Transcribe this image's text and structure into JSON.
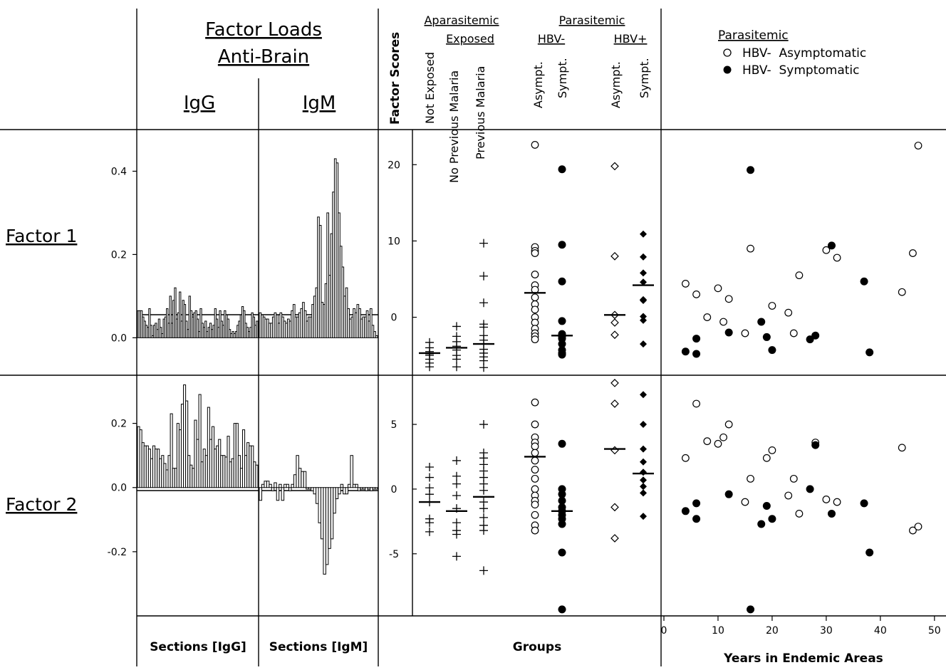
{
  "header": {
    "factor_loads": "Factor Loads",
    "anti_brain": "Anti-Brain",
    "igg": "IgG",
    "igm": "IgM",
    "factor_scores": "Factor Scores",
    "aparasitemic": "Aparasitemic",
    "exposed": "Exposed",
    "parasitemic": "Parasitemic",
    "hbv_neg": "HBV-",
    "hbv_pos": "HBV+",
    "groups": [
      "Not Exposed",
      "No Previous Malaria",
      "Previous Malaria",
      "Asympt.",
      "Sympt.",
      "Asympt.",
      "Sympt."
    ]
  },
  "rows": {
    "factor1": "Factor 1",
    "factor2": "Factor 2"
  },
  "footer": {
    "sections_igg": "Sections [IgG]",
    "sections_igm": "Sections [IgM]",
    "groups": "Groups",
    "years": "Years in Endemic Areas"
  },
  "legend": {
    "title": "Parasitemic",
    "asymptomatic": "HBV-  Asymptomatic",
    "symptomatic": "HBV-  Symptomatic"
  },
  "chart_data": [
    {
      "type": "bar",
      "name": "loads-factor1",
      "ylim": [
        -0.09,
        0.5
      ],
      "yticks": [
        0.0,
        0.2,
        0.4
      ],
      "ytick_labels": [
        "0.0",
        "0.2",
        "0.4"
      ],
      "series": [
        {
          "name": "IgG",
          "values": [
            0.065,
            0.065,
            0.065,
            0.05,
            0.04,
            0.03,
            0.025,
            0.07,
            0.03,
            0.005,
            0.03,
            0.035,
            0.02,
            0.045,
            0.025,
            0.01,
            0.045,
            0.05,
            0.07,
            0.035,
            0.1,
            0.035,
            0.09,
            0.12,
            0.045,
            0.06,
            0.11,
            0.04,
            0.09,
            0.08,
            0.04,
            0.02,
            0.1,
            0.065,
            0.05,
            0.06,
            0.065,
            0.045,
            0.015,
            0.07,
            0.035,
            0.025,
            0.04,
            0.015,
            0.025,
            0.035,
            0.02,
            0.03,
            0.07,
            0.045,
            0.025,
            0.065,
            0.04,
            0.03,
            0.065,
            0.055,
            0.045,
            0.02,
            0.01,
            0.015,
            0.01,
            0.015,
            0.03,
            0.04,
            0.055,
            0.075,
            0.065,
            0.035,
            0.025,
            0.015,
            0.025,
            0.06,
            0.05,
            0.03,
            0.04
          ]
        },
        {
          "name": "IgM",
          "values": [
            0.06,
            0.055,
            0.05,
            0.045,
            0.045,
            0.035,
            0.035,
            0.05,
            0.06,
            0.055,
            0.035,
            0.06,
            0.05,
            0.04,
            0.035,
            0.045,
            0.04,
            0.065,
            0.08,
            0.05,
            0.05,
            0.06,
            0.07,
            0.085,
            0.065,
            0.04,
            0.05,
            0.05,
            0.08,
            0.1,
            0.12,
            0.29,
            0.27,
            0.085,
            0.08,
            0.13,
            0.3,
            0.15,
            0.25,
            0.35,
            0.43,
            0.42,
            0.3,
            0.22,
            0.17,
            0.1,
            0.12,
            0.07,
            0.045,
            0.05,
            0.07,
            0.06,
            0.08,
            0.07,
            0.045,
            0.05,
            0.05,
            0.065,
            0.04,
            0.07,
            0.03,
            0.015,
            0.005
          ]
        }
      ]
    },
    {
      "type": "bar",
      "name": "loads-factor2",
      "ylim": [
        -0.4,
        0.35
      ],
      "yticks": [
        -0.2,
        0.0,
        0.2
      ],
      "ytick_labels": [
        "-0.2",
        "0.0",
        "0.2"
      ],
      "series": [
        {
          "name": "IgG",
          "values": [
            0.19,
            0.18,
            0.14,
            0.13,
            0.13,
            0.12,
            0.09,
            0.13,
            0.12,
            0.12,
            0.09,
            0.1,
            0.075,
            0.055,
            0.1,
            0.23,
            0.06,
            0.06,
            0.2,
            0.18,
            0.26,
            0.32,
            0.27,
            0.1,
            0.07,
            0.06,
            0.21,
            0.15,
            0.29,
            0.08,
            0.12,
            0.1,
            0.25,
            0.15,
            0.19,
            0.12,
            0.13,
            0.15,
            0.1,
            0.1,
            0.095,
            0.16,
            0.08,
            0.09,
            0.2,
            0.2,
            0.1,
            0.06,
            0.18,
            0.1,
            0.14,
            0.13,
            0.13,
            0.08,
            0.07
          ]
        },
        {
          "name": "IgM",
          "values": [
            -0.04,
            0.01,
            0.02,
            0.02,
            0.01,
            -0.01,
            0.015,
            -0.04,
            0.01,
            -0.04,
            0.01,
            0.01,
            -0.01,
            0.01,
            0.04,
            0.1,
            0.06,
            0.05,
            0.05,
            -0.005,
            -0.005,
            -0.01,
            -0.02,
            -0.05,
            -0.11,
            -0.16,
            -0.27,
            -0.24,
            -0.19,
            -0.16,
            -0.08,
            -0.035,
            -0.02,
            0.01,
            -0.02,
            -0.02,
            0.01,
            0.1,
            0.01,
            0.01,
            -0.01,
            -0.005,
            -0.005,
            -0.01,
            -0.005,
            -0.01,
            -0.005,
            -0.005
          ]
        }
      ]
    },
    {
      "type": "scatter",
      "name": "scores-factor1",
      "ylim": [
        -7.6,
        24.6
      ],
      "yticks": [
        0,
        10,
        20
      ],
      "ytick_labels": [
        "0",
        "10",
        "20"
      ],
      "groups": [
        {
          "label": "Not Exposed",
          "marker": "plus",
          "values": [
            -3.3,
            -4.0,
            -4.5,
            -4.8,
            -5.0,
            -5.5,
            -6.0,
            -6.5
          ],
          "median": -4.7
        },
        {
          "label": "No Previous Malaria",
          "marker": "plus",
          "values": [
            -1.2,
            -2.5,
            -3.2,
            -3.8,
            -4.3,
            -5.0,
            -5.5,
            -6.5
          ],
          "median": -4.0
        },
        {
          "label": "Previous Malaria",
          "marker": "plus",
          "values": [
            9.7,
            5.4,
            1.9,
            -0.9,
            -1.3,
            -2.4,
            -3.0,
            -3.5,
            -4.2,
            -4.7,
            -5.2,
            -5.7,
            -6.6
          ],
          "median": -3.5
        },
        {
          "label": "Asympt. HBV-",
          "marker": "open-circle",
          "values": [
            22.6,
            9.2,
            8.7,
            8.4,
            5.6,
            4.2,
            3.6,
            2.6,
            1.7,
            1.0,
            0.0,
            -0.7,
            -1.5,
            -2.1,
            -2.5,
            -2.9
          ],
          "median": 3.2
        },
        {
          "label": "Sympt. HBV-",
          "marker": "filled-circle",
          "values": [
            19.4,
            9.5,
            4.7,
            -0.5,
            -2.2,
            -2.5,
            -2.8,
            -3.5,
            -4.3,
            -4.7,
            -4.9
          ],
          "median": -2.4
        },
        {
          "label": "Asympt. HBV+",
          "marker": "open-diamond",
          "values": [
            19.8,
            8.0,
            0.3,
            -0.7,
            -2.3
          ],
          "median": 0.3
        },
        {
          "label": "Sympt. HBV+",
          "marker": "filled-diamond",
          "values": [
            10.9,
            7.9,
            5.8,
            4.6,
            2.3,
            2.2,
            0.1,
            -0.4,
            -3.5
          ],
          "median": 4.2
        }
      ]
    },
    {
      "type": "scatter",
      "name": "scores-factor2",
      "ylim": [
        -9.8,
        8.8
      ],
      "yticks": [
        -5,
        0,
        5
      ],
      "ytick_labels": [
        "-5",
        "0",
        "5"
      ],
      "groups": [
        {
          "label": "Not Exposed",
          "marker": "plus",
          "values": [
            1.7,
            0.9,
            0.1,
            -0.4,
            -1.0,
            -2.3,
            -2.6,
            -3.3
          ],
          "median": -1.0
        },
        {
          "label": "No Previous Malaria",
          "marker": "plus",
          "values": [
            2.2,
            1.0,
            0.4,
            -0.5,
            -1.5,
            -2.6,
            -3.2,
            -3.5,
            -5.2
          ],
          "median": -1.7
        },
        {
          "label": "Previous Malaria",
          "marker": "plus",
          "values": [
            5.0,
            2.8,
            2.4,
            1.9,
            1.4,
            0.9,
            0.4,
            -0.1,
            -1.0,
            -1.5,
            -2.2,
            -2.8,
            -3.2,
            -6.3
          ],
          "median": -0.6
        },
        {
          "label": "Asympt. HBV-",
          "marker": "open-circle",
          "values": [
            6.7,
            5.0,
            4.0,
            3.6,
            3.3,
            2.8,
            2.2,
            1.5,
            0.8,
            0.0,
            -0.5,
            -0.9,
            -1.2,
            -2.0,
            -2.8,
            -3.2
          ],
          "median": 2.5
        },
        {
          "label": "Sympt. HBV-",
          "marker": "filled-circle",
          "values": [
            3.5,
            0.0,
            -0.4,
            -0.9,
            -1.4,
            -1.7,
            -2.0,
            -2.3,
            -2.7,
            -4.9,
            -9.3
          ],
          "median": -1.7
        },
        {
          "label": "Asympt. HBV+",
          "marker": "open-diamond",
          "values": [
            8.2,
            6.6,
            3.0,
            -1.4,
            -3.8
          ],
          "median": 3.1
        },
        {
          "label": "Sympt. HBV+",
          "marker": "filled-diamond",
          "values": [
            7.3,
            5.0,
            3.1,
            2.1,
            1.3,
            0.7,
            0.2,
            -0.3,
            -2.1
          ],
          "median": 1.2
        }
      ]
    },
    {
      "type": "scatter",
      "name": "years-factor1",
      "xlim": [
        0,
        52
      ],
      "xticks": [
        0,
        10,
        20,
        30,
        40,
        50
      ],
      "xtick_labels": [
        "0",
        "10",
        "20",
        "30",
        "40",
        "50"
      ],
      "ylim": [
        -7.6,
        24.6
      ],
      "series": [
        {
          "name": "HBV-  Asymptomatic",
          "marker": "open-circle",
          "points": [
            [
              4,
              4.4
            ],
            [
              6,
              3.0
            ],
            [
              8,
              0.0
            ],
            [
              10,
              3.8
            ],
            [
              11,
              -0.6
            ],
            [
              12,
              2.4
            ],
            [
              15,
              -2.1
            ],
            [
              16,
              9.0
            ],
            [
              20,
              1.5
            ],
            [
              23,
              0.6
            ],
            [
              24,
              -2.1
            ],
            [
              25,
              5.5
            ],
            [
              30,
              8.8
            ],
            [
              32,
              7.8
            ],
            [
              44,
              3.3
            ],
            [
              46,
              8.4
            ],
            [
              47,
              22.5
            ]
          ]
        },
        {
          "name": "HBV-  Symptomatic",
          "marker": "filled-circle",
          "points": [
            [
              4,
              -4.5
            ],
            [
              6,
              -2.8
            ],
            [
              6,
              -4.8
            ],
            [
              12,
              -2.0
            ],
            [
              16,
              19.3
            ],
            [
              18,
              -0.6
            ],
            [
              19,
              -2.6
            ],
            [
              20,
              -4.3
            ],
            [
              27,
              -2.9
            ],
            [
              28,
              -2.4
            ],
            [
              31,
              9.4
            ],
            [
              37,
              4.7
            ],
            [
              38,
              -4.6
            ]
          ]
        }
      ]
    },
    {
      "type": "scatter",
      "name": "years-factor2",
      "xlim": [
        0,
        52
      ],
      "xticks": [
        0,
        10,
        20,
        30,
        40,
        50
      ],
      "xtick_labels": [
        "0",
        "10",
        "20",
        "30",
        "40",
        "50"
      ],
      "ylim": [
        -9.8,
        8.8
      ],
      "series": [
        {
          "name": "HBV-  Asymptomatic",
          "marker": "open-circle",
          "points": [
            [
              4,
              2.4
            ],
            [
              6,
              6.6
            ],
            [
              8,
              3.7
            ],
            [
              10,
              3.5
            ],
            [
              11,
              4.0
            ],
            [
              12,
              5.0
            ],
            [
              15,
              -1.0
            ],
            [
              16,
              0.8
            ],
            [
              19,
              2.4
            ],
            [
              20,
              3.0
            ],
            [
              23,
              -0.5
            ],
            [
              24,
              0.8
            ],
            [
              25,
              -1.9
            ],
            [
              28,
              3.6
            ],
            [
              30,
              -0.8
            ],
            [
              32,
              -1.0
            ],
            [
              44,
              3.2
            ],
            [
              46,
              -3.2
            ],
            [
              47,
              -2.9
            ]
          ]
        },
        {
          "name": "HBV-  Symptomatic",
          "marker": "filled-circle",
          "points": [
            [
              4,
              -1.7
            ],
            [
              6,
              -1.1
            ],
            [
              6,
              -2.3
            ],
            [
              12,
              -0.4
            ],
            [
              16,
              -9.3
            ],
            [
              18,
              -2.7
            ],
            [
              19,
              -1.3
            ],
            [
              20,
              -2.3
            ],
            [
              27,
              0.0
            ],
            [
              28,
              3.4
            ],
            [
              31,
              -1.9
            ],
            [
              37,
              -1.1
            ],
            [
              38,
              -4.9
            ]
          ]
        }
      ]
    }
  ]
}
